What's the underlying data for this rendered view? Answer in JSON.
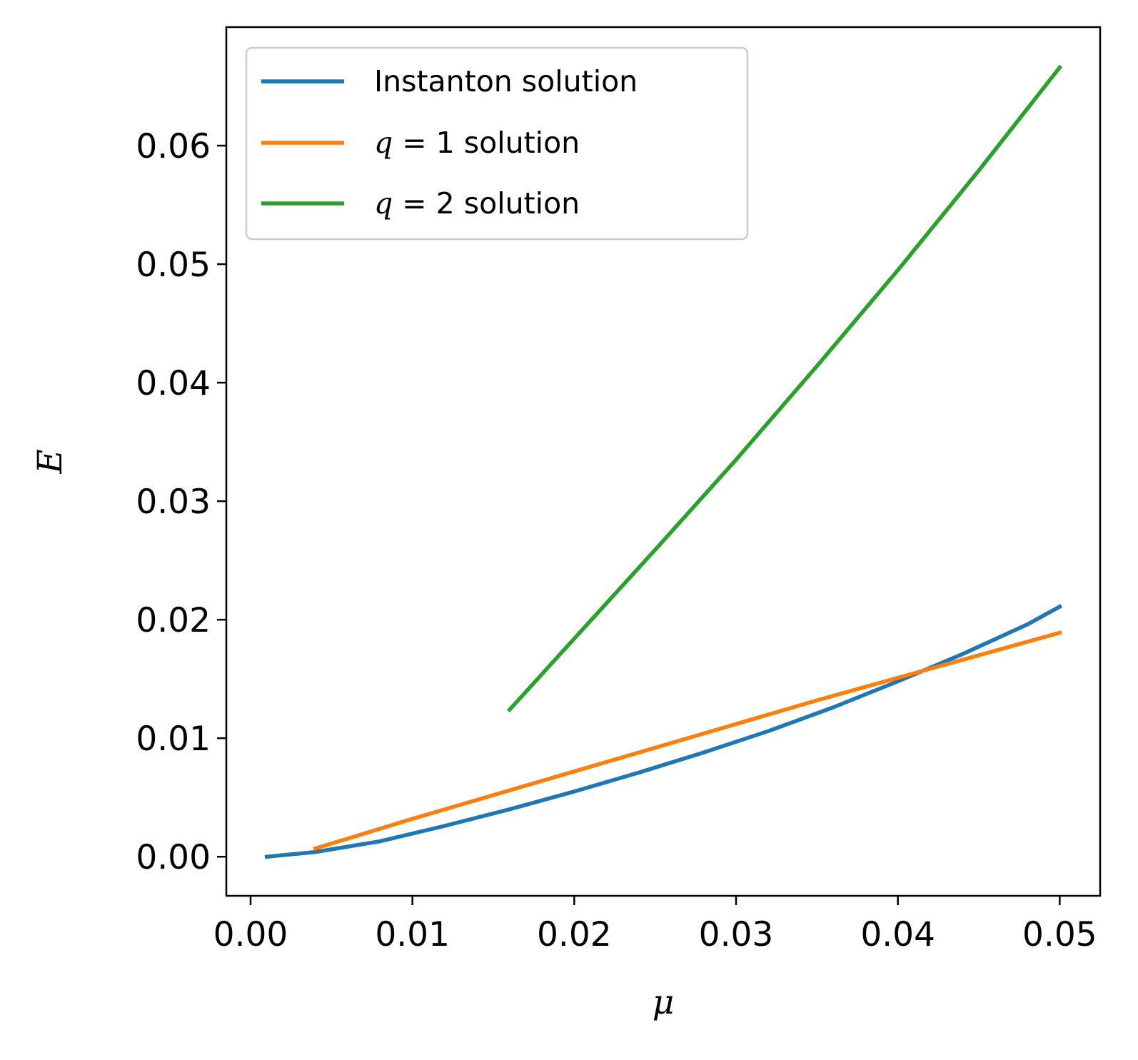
{
  "chart_data": {
    "type": "line",
    "title": "",
    "xlabel": "μ",
    "ylabel": "E",
    "xlim": [
      -0.0015,
      0.0525
    ],
    "ylim": [
      -0.0033,
      0.07
    ],
    "xticks": [
      0.0,
      0.01,
      0.02,
      0.03,
      0.04,
      0.05
    ],
    "xtick_labels": [
      "0.00",
      "0.01",
      "0.02",
      "0.03",
      "0.04",
      "0.05"
    ],
    "yticks": [
      0.0,
      0.01,
      0.02,
      0.03,
      0.04,
      0.05,
      0.06
    ],
    "ytick_labels": [
      "0.00",
      "0.01",
      "0.02",
      "0.03",
      "0.04",
      "0.05",
      "0.06"
    ],
    "grid": false,
    "legend_position": "top-left",
    "series": [
      {
        "name": "Instanton solution",
        "color": "#1f77b4",
        "x": [
          0.001,
          0.004,
          0.008,
          0.012,
          0.016,
          0.02,
          0.024,
          0.028,
          0.032,
          0.036,
          0.04,
          0.044,
          0.048,
          0.05
        ],
        "y": [
          0.0,
          0.0004,
          0.0013,
          0.0026,
          0.004,
          0.0055,
          0.0071,
          0.0088,
          0.0106,
          0.0126,
          0.0148,
          0.0171,
          0.0196,
          0.0211
        ]
      },
      {
        "name": "q = 1 solution",
        "legend_parts": {
          "var": "q",
          "rest": " = 1 solution"
        },
        "color": "#ff7f0e",
        "x": [
          0.004,
          0.01,
          0.015,
          0.02,
          0.025,
          0.03,
          0.035,
          0.04,
          0.045,
          0.05
        ],
        "y": [
          0.0007,
          0.0032,
          0.0052,
          0.0072,
          0.0092,
          0.0112,
          0.0132,
          0.0151,
          0.017,
          0.0189
        ]
      },
      {
        "name": "q = 2 solution",
        "legend_parts": {
          "var": "q",
          "rest": " = 2 solution"
        },
        "color": "#2ca02c",
        "x": [
          0.016,
          0.02,
          0.025,
          0.03,
          0.035,
          0.04,
          0.045,
          0.05
        ],
        "y": [
          0.0124,
          0.0184,
          0.0259,
          0.0335,
          0.0414,
          0.0495,
          0.0579,
          0.0666
        ]
      }
    ]
  }
}
